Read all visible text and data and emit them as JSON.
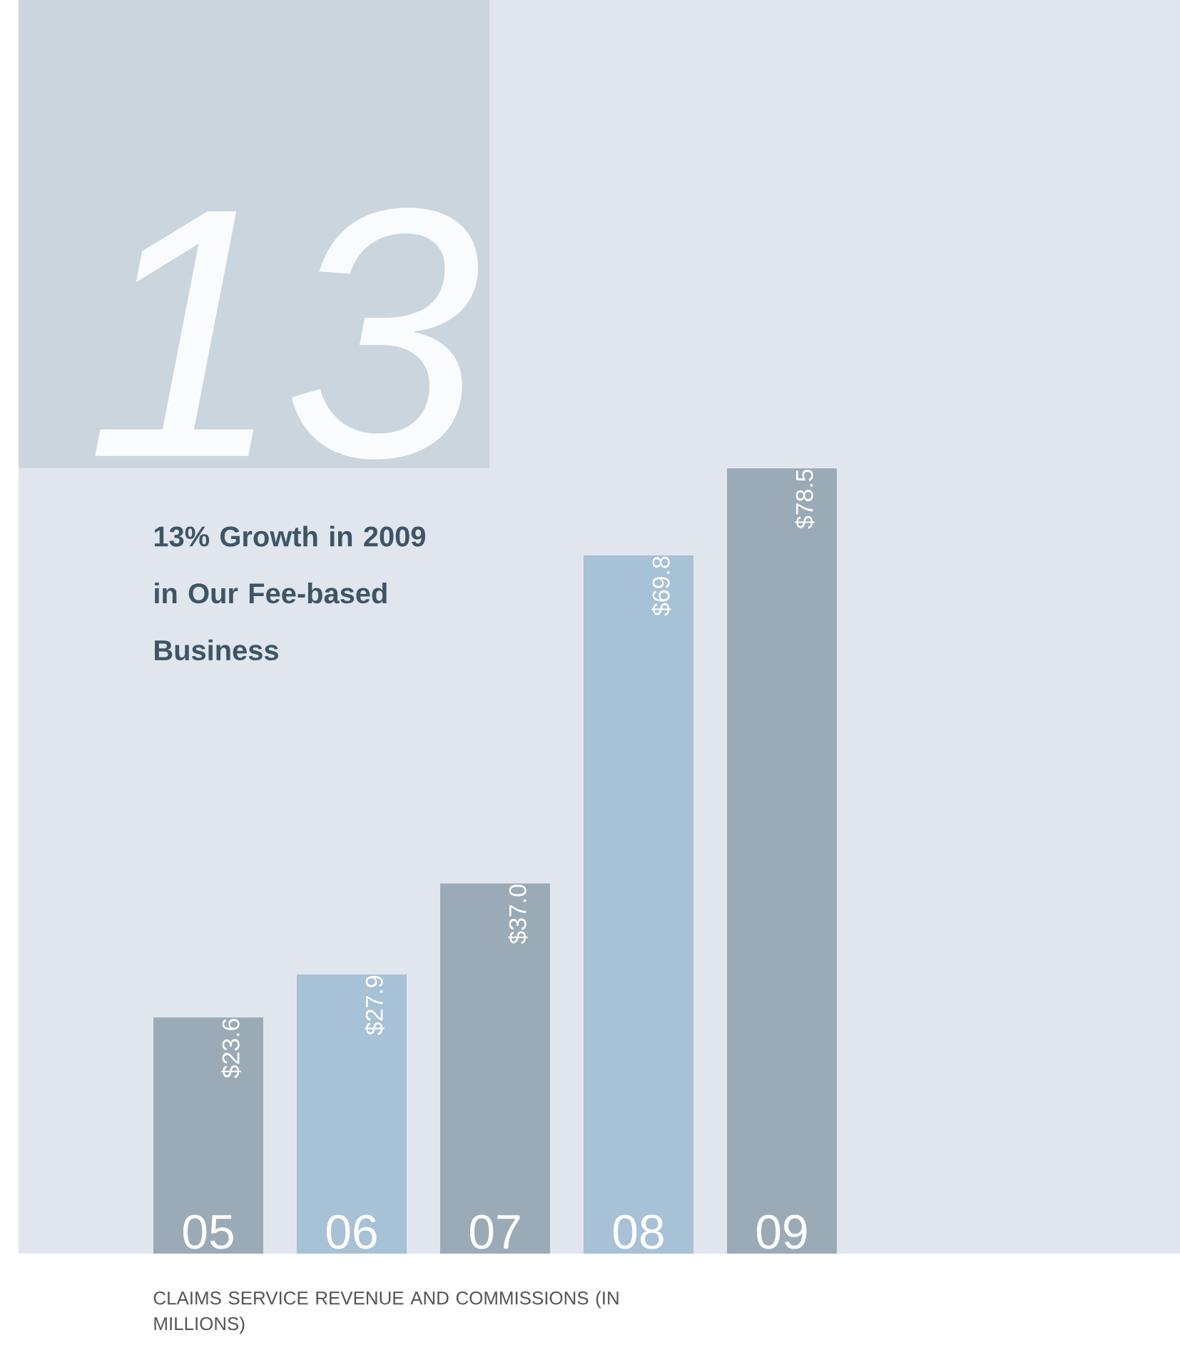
{
  "chart_data": {
    "type": "bar",
    "title": "13% Growth in 2009 in Our Fee-based Business",
    "xlabel": "CLAIMS SERVICE REVENUE AND COMMISSIONS (IN MILLIONS)",
    "annotations": [
      "13"
    ],
    "categories": [
      "05",
      "06",
      "07",
      "08",
      "09"
    ],
    "values": [
      23.6,
      27.9,
      37.0,
      69.8,
      78.5
    ],
    "value_labels": [
      "$23.6",
      "$27.9",
      "$37.0",
      "$69.8",
      "$78.5"
    ],
    "colors": [
      "#9aabb7",
      "#a7c1d6",
      "#9aabb7",
      "#a7c1d6",
      "#9aabb7"
    ]
  }
}
